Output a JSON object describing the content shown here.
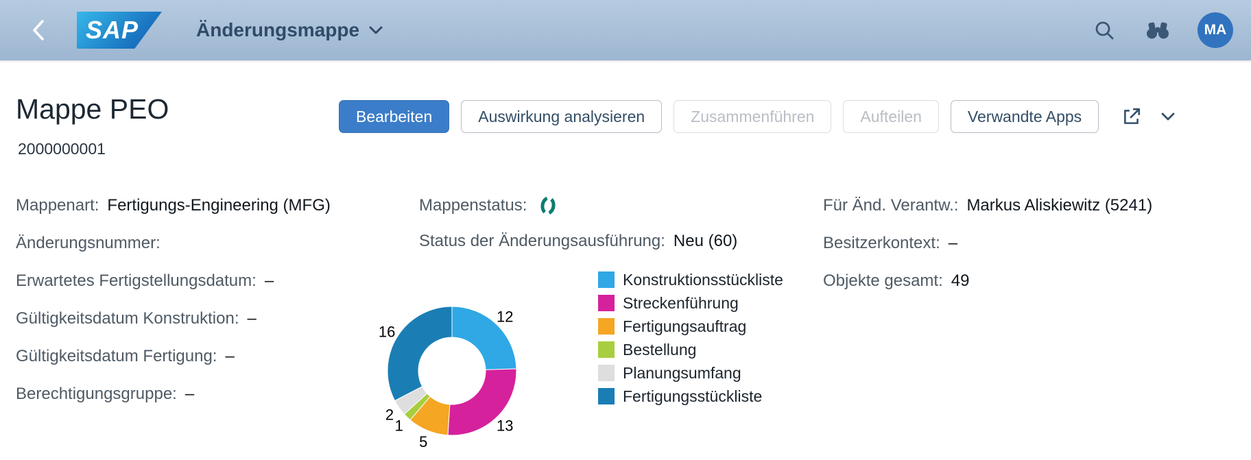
{
  "shell": {
    "logo_text": "SAP",
    "app_title": "Änderungsmappe",
    "avatar_initials": "MA"
  },
  "icons": {
    "back": "chevron-left",
    "app_menu": "chevron-down",
    "search": "magnifier",
    "inspect": "binoculars",
    "share": "open-in-new-box-arrow",
    "actions_more": "chevron-down",
    "status": "in-process-ring"
  },
  "colors": {
    "accent": "#3b7dc9",
    "status_icon": "#0a7d6f",
    "header_gradient_top": "#b6cbe0",
    "header_gradient_bottom": "#9db6d1"
  },
  "page": {
    "title": "Mappe PEO",
    "subtitle": "2000000001",
    "buttons": {
      "edit": "Bearbeiten",
      "analyze": "Auswirkung analysieren",
      "merge": "Zusammenführen",
      "split": "Aufteilen",
      "related_apps": "Verwandte Apps"
    }
  },
  "fields": {
    "left": [
      {
        "label": "Mappenart:",
        "value": "Fertigungs-Engineering (MFG)"
      },
      {
        "label": "Änderungsnummer:",
        "value": ""
      },
      {
        "label": "Erwartetes Fertigstellungsdatum:",
        "value": "–"
      },
      {
        "label": "Gültigkeitsdatum Konstruktion:",
        "value": "–"
      },
      {
        "label": "Gültigkeitsdatum Fertigung:",
        "value": "–"
      },
      {
        "label": "Berechtigungsgruppe:",
        "value": "–"
      }
    ],
    "middle": [
      {
        "label": "Mappenstatus:",
        "value": ""
      },
      {
        "label": "Status der Änderungsausführung:",
        "value": "Neu (60)"
      }
    ],
    "right": [
      {
        "label": "Für Änd. Verantw.:",
        "value": "Markus Aliskiewitz (5241)"
      },
      {
        "label": "Besitzerkontext:",
        "value": "–"
      },
      {
        "label": "Objekte gesamt:",
        "value": "49"
      }
    ]
  },
  "chart_data": {
    "type": "pie",
    "donut": true,
    "categories": [
      "Konstruktionsstückliste",
      "Streckenführung",
      "Fertigungsauftrag",
      "Bestellung",
      "Planungsumfang",
      "Fertigungsstückliste"
    ],
    "values": [
      12,
      13,
      5,
      1,
      2,
      16
    ],
    "colors": [
      "#2fa8e5",
      "#d6219c",
      "#f5a623",
      "#a8ce3f",
      "#dedede",
      "#1a7eb5"
    ],
    "total": 49,
    "legend_position": "right",
    "data_labels": "outside"
  }
}
